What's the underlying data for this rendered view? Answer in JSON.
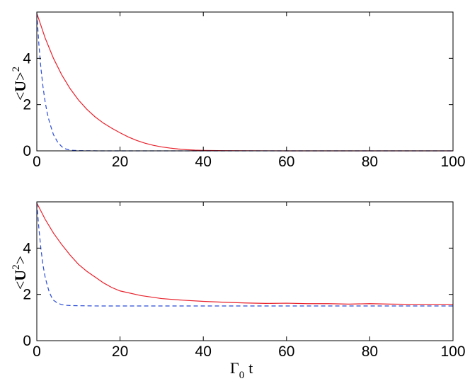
{
  "chart_data": [
    {
      "type": "line",
      "ylabel": {
        "bracket_open": "<",
        "symbol": "U",
        "bracket_close": ">",
        "power": "2"
      },
      "xlabel": "",
      "xlim": [
        0,
        100
      ],
      "ylim": [
        0,
        6
      ],
      "xticks": [
        0,
        20,
        40,
        60,
        80,
        100
      ],
      "yticks": [
        0,
        2,
        4
      ],
      "grid": false,
      "series": [
        {
          "style": "solid",
          "color": "#e8212b",
          "x": [
            0,
            2,
            4,
            6,
            8,
            10,
            12,
            14,
            16,
            18,
            20,
            22,
            24,
            26,
            28,
            30,
            32,
            34,
            36,
            38,
            40,
            45,
            50,
            60,
            70,
            80,
            90,
            100
          ],
          "y": [
            5.95,
            4.88,
            4.0,
            3.28,
            2.69,
            2.2,
            1.8,
            1.47,
            1.2,
            0.98,
            0.78,
            0.6,
            0.45,
            0.33,
            0.24,
            0.17,
            0.12,
            0.08,
            0.05,
            0.03,
            0.02,
            0.01,
            0.005,
            0,
            0,
            0,
            0,
            0
          ]
        },
        {
          "style": "dashed",
          "color": "#2a4bd7",
          "x": [
            0,
            0.5,
            1,
            1.5,
            2,
            2.5,
            3,
            3.5,
            4,
            5,
            6,
            7,
            8,
            10,
            15,
            20,
            40,
            60,
            80,
            100
          ],
          "y": [
            5.95,
            4.6,
            3.55,
            2.75,
            2.12,
            1.64,
            1.27,
            0.98,
            0.7,
            0.38,
            0.18,
            0.08,
            0.03,
            0.01,
            0,
            0,
            0,
            0,
            0,
            0
          ]
        }
      ]
    },
    {
      "type": "line",
      "ylabel": {
        "bracket_open": "<",
        "symbol": "U",
        "power": "2",
        "bracket_close": ">"
      },
      "xlabel": {
        "symbol": "Γ",
        "subscript": "0",
        "variable": "t"
      },
      "xlim": [
        0,
        100
      ],
      "ylim": [
        0,
        6
      ],
      "xticks": [
        0,
        20,
        40,
        60,
        80,
        100
      ],
      "yticks": [
        0,
        2,
        4
      ],
      "grid": false,
      "series": [
        {
          "style": "solid",
          "color": "#e8212b",
          "x": [
            0,
            2,
            4,
            6,
            8,
            10,
            12,
            14,
            16,
            18,
            20,
            25,
            30,
            35,
            40,
            45,
            50,
            55,
            60,
            65,
            70,
            75,
            80,
            85,
            90,
            95,
            100
          ],
          "y": [
            5.95,
            5.25,
            4.65,
            4.15,
            3.7,
            3.3,
            3.0,
            2.75,
            2.5,
            2.3,
            2.15,
            1.95,
            1.82,
            1.75,
            1.7,
            1.66,
            1.63,
            1.61,
            1.62,
            1.6,
            1.6,
            1.58,
            1.6,
            1.58,
            1.57,
            1.57,
            1.57
          ]
        },
        {
          "style": "dashed",
          "color": "#2a4bd7",
          "x": [
            0,
            0.5,
            1,
            1.5,
            2,
            2.5,
            3,
            3.5,
            4,
            5,
            6,
            7,
            8,
            10,
            15,
            20,
            40,
            60,
            80,
            100
          ],
          "y": [
            5.95,
            4.85,
            3.95,
            3.25,
            2.75,
            2.4,
            2.1,
            1.9,
            1.75,
            1.62,
            1.56,
            1.53,
            1.52,
            1.51,
            1.5,
            1.5,
            1.5,
            1.5,
            1.5,
            1.5
          ]
        }
      ]
    }
  ]
}
